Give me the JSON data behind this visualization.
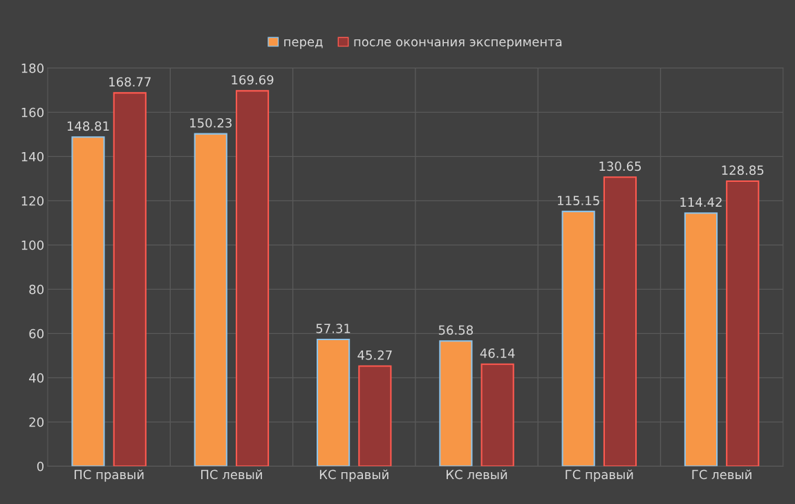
{
  "chart_data": {
    "type": "bar",
    "categories": [
      "ПС правый",
      "ПС левый",
      "КС правый",
      "КС левый",
      "ГС правый",
      "ГС левый"
    ],
    "series": [
      {
        "name": "перед",
        "color": "#f79646",
        "values": [
          148.81,
          150.23,
          57.31,
          56.58,
          115.15,
          114.42
        ]
      },
      {
        "name": "после окончания эксперимента",
        "color": "#953735",
        "values": [
          168.77,
          169.69,
          45.27,
          46.14,
          130.65,
          128.85
        ]
      }
    ],
    "ylim": [
      0,
      180
    ],
    "yticks": [
      0,
      20,
      40,
      60,
      80,
      100,
      120,
      140,
      160,
      180
    ],
    "grid": true,
    "legend": "top",
    "data_labels": true
  }
}
